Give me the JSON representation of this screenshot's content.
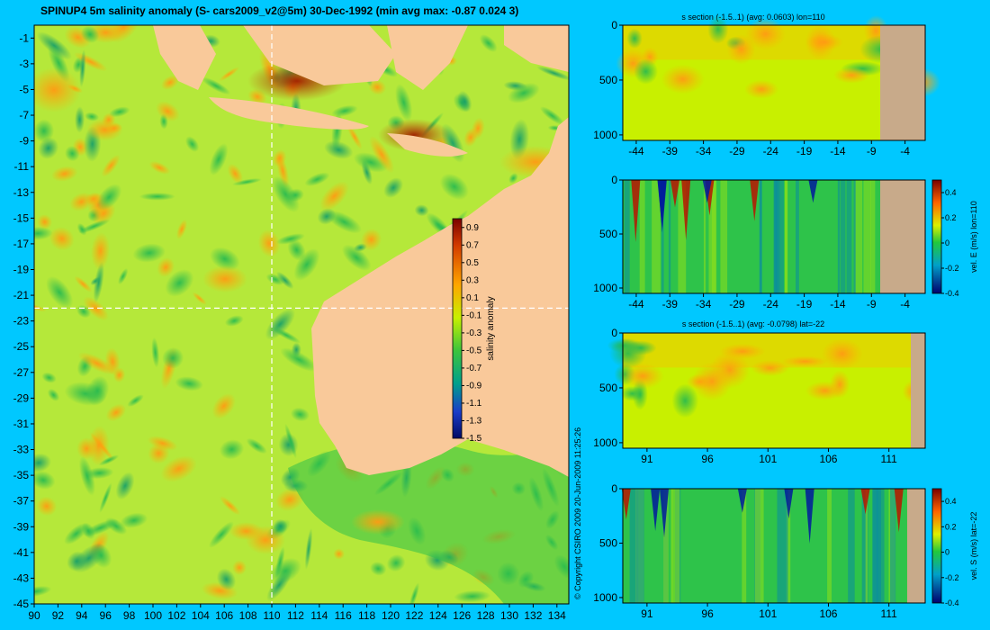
{
  "header": {
    "title": "SPINUP4 5m salinity anomaly  (S- cars2009_v2@5m) 30-Dec-1992 (min avg max: -0.87 0.024 3)"
  },
  "copyright": "© Copyright CSIRO 2009   20-Jun-2009 11:25:26",
  "colors": {
    "background": "#00c8ff",
    "land": "#f9c99a",
    "deep_land": "#c8aa8a",
    "base_ocean": "#b5e83a"
  },
  "chart_data": [
    {
      "type": "heatmap",
      "name": "salinity-map",
      "title": "SPINUP4 5m salinity anomaly  (S- cars2009_v2@5m) 30-Dec-1992 (min avg max: -0.87 0.024 3)",
      "xlim": [
        90,
        135
      ],
      "ylim": [
        -45,
        0
      ],
      "x_ticks": [
        "90",
        "92",
        "94",
        "96",
        "98",
        "100",
        "102",
        "104",
        "106",
        "108",
        "110",
        "112",
        "114",
        "116",
        "118",
        "120",
        "122",
        "124",
        "126",
        "128",
        "130",
        "132",
        "134"
      ],
      "y_ticks": [
        "-1",
        "-3",
        "-5",
        "-7",
        "-9",
        "-11",
        "-13",
        "-15",
        "-17",
        "-19",
        "-21",
        "-23",
        "-25",
        "-27",
        "-29",
        "-31",
        "-33",
        "-35",
        "-37",
        "-39",
        "-41",
        "-43",
        "-45"
      ],
      "section_lines": {
        "lon": 110,
        "lat": -22
      },
      "colorbar": {
        "label": "salinity anomaly",
        "range": [
          -1.5,
          1.0
        ],
        "ticks": [
          "0.9",
          "0.7",
          "0.5",
          "0.3",
          "0.1",
          "-0.1",
          "-0.3",
          "-0.5",
          "-0.7",
          "-0.9",
          "-1.1",
          "-1.3",
          "-1.5"
        ]
      }
    },
    {
      "type": "heatmap",
      "name": "s-section-lon110",
      "title": "s section (-1.5..1) (avg: 0.0603) lon=110",
      "x_ticks": [
        "-44",
        "-39",
        "-34",
        "-29",
        "-24",
        "-19",
        "-14",
        "-9",
        "-4"
      ],
      "y_ticks": [
        "0",
        "500",
        "1000"
      ],
      "ylim": [
        1050,
        0
      ]
    },
    {
      "type": "heatmap",
      "name": "vel-e-section-lon110",
      "title": "",
      "x_ticks": [
        "-44",
        "-39",
        "-34",
        "-29",
        "-24",
        "-19",
        "-14",
        "-9",
        "-4"
      ],
      "y_ticks": [
        "0",
        "500",
        "1000"
      ],
      "ylim": [
        1050,
        0
      ],
      "colorbar": {
        "label": "vel. E (m/s) lon=110",
        "range": [
          -0.4,
          0.5
        ],
        "ticks": [
          "0.4",
          "0.2",
          "0",
          "-0.2",
          "-0.4"
        ]
      }
    },
    {
      "type": "heatmap",
      "name": "s-section-lat-22",
      "title": "s section (-1.5..1) (avg: -0.0798) lat=-22",
      "x_ticks": [
        "91",
        "96",
        "101",
        "106",
        "111"
      ],
      "y_ticks": [
        "0",
        "500",
        "1000"
      ],
      "ylim": [
        1050,
        0
      ]
    },
    {
      "type": "heatmap",
      "name": "vel-s-section-lat-22",
      "title": "",
      "x_ticks": [
        "91",
        "96",
        "101",
        "106",
        "111"
      ],
      "y_ticks": [
        "0",
        "500",
        "1000"
      ],
      "ylim": [
        1050,
        0
      ],
      "colorbar": {
        "label": "vel. S (m/s) lat=-22",
        "range": [
          -0.4,
          0.5
        ],
        "ticks": [
          "0.4",
          "0.2",
          "0",
          "-0.2",
          "-0.4"
        ]
      }
    }
  ]
}
